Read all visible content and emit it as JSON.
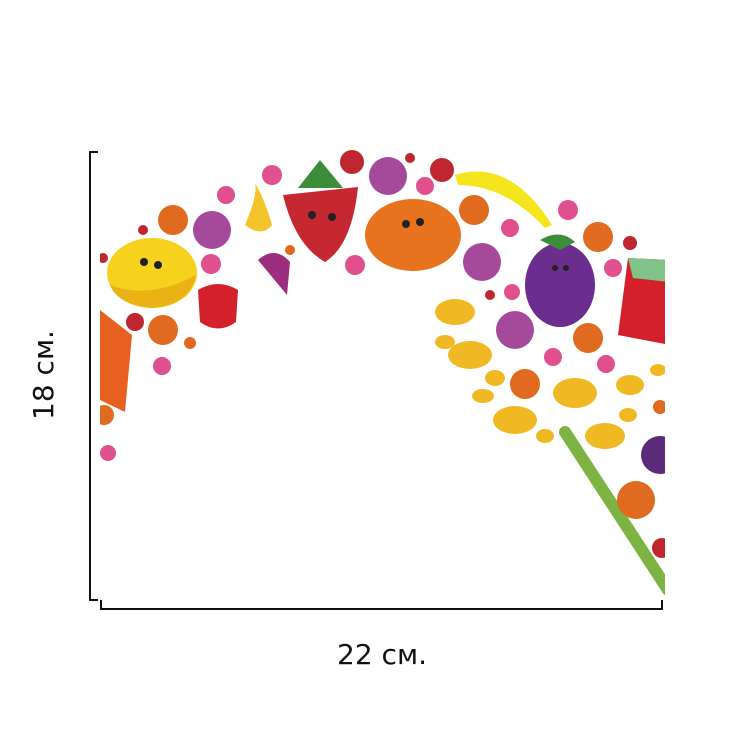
{
  "dimensions": {
    "height": "18 см.",
    "width": "22 см."
  }
}
